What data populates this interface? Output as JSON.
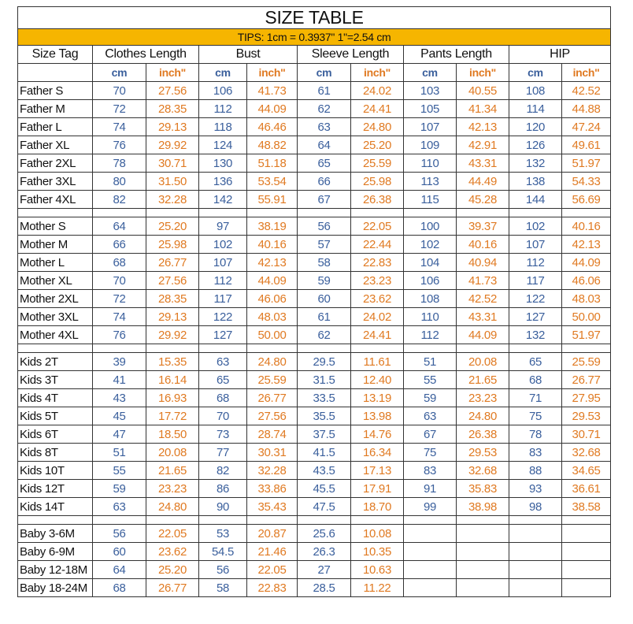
{
  "title": "SIZE TABLE",
  "tips": "TIPS: 1cm = 0.3937\"   1\"=2.54 cm",
  "headers": [
    "Size Tag",
    "Clothes Length",
    "Bust",
    "Sleeve Length",
    "Pants Length",
    "HIP"
  ],
  "unit_cm": "cm",
  "unit_inch": "inch\"",
  "colors": {
    "cm": "#3a5f9c",
    "inch": "#e07a22",
    "tips_bg": "#f6b500"
  },
  "groups": [
    {
      "rows": [
        {
          "tag": "Father S",
          "v": [
            "70",
            "27.56",
            "106",
            "41.73",
            "61",
            "24.02",
            "103",
            "40.55",
            "108",
            "42.52"
          ]
        },
        {
          "tag": "Father M",
          "v": [
            "72",
            "28.35",
            "112",
            "44.09",
            "62",
            "24.41",
            "105",
            "41.34",
            "114",
            "44.88"
          ]
        },
        {
          "tag": "Father L",
          "v": [
            "74",
            "29.13",
            "118",
            "46.46",
            "63",
            "24.80",
            "107",
            "42.13",
            "120",
            "47.24"
          ]
        },
        {
          "tag": "Father XL",
          "v": [
            "76",
            "29.92",
            "124",
            "48.82",
            "64",
            "25.20",
            "109",
            "42.91",
            "126",
            "49.61"
          ]
        },
        {
          "tag": "Father 2XL",
          "v": [
            "78",
            "30.71",
            "130",
            "51.18",
            "65",
            "25.59",
            "110",
            "43.31",
            "132",
            "51.97"
          ]
        },
        {
          "tag": "Father 3XL",
          "v": [
            "80",
            "31.50",
            "136",
            "53.54",
            "66",
            "25.98",
            "113",
            "44.49",
            "138",
            "54.33"
          ]
        },
        {
          "tag": "Father 4XL",
          "v": [
            "82",
            "32.28",
            "142",
            "55.91",
            "67",
            "26.38",
            "115",
            "45.28",
            "144",
            "56.69"
          ]
        }
      ]
    },
    {
      "rows": [
        {
          "tag": "Mother S",
          "v": [
            "64",
            "25.20",
            "97",
            "38.19",
            "56",
            "22.05",
            "100",
            "39.37",
            "102",
            "40.16"
          ]
        },
        {
          "tag": "Mother M",
          "v": [
            "66",
            "25.98",
            "102",
            "40.16",
            "57",
            "22.44",
            "102",
            "40.16",
            "107",
            "42.13"
          ]
        },
        {
          "tag": "Mother L",
          "v": [
            "68",
            "26.77",
            "107",
            "42.13",
            "58",
            "22.83",
            "104",
            "40.94",
            "112",
            "44.09"
          ]
        },
        {
          "tag": "Mother XL",
          "v": [
            "70",
            "27.56",
            "112",
            "44.09",
            "59",
            "23.23",
            "106",
            "41.73",
            "117",
            "46.06"
          ]
        },
        {
          "tag": "Mother 2XL",
          "v": [
            "72",
            "28.35",
            "117",
            "46.06",
            "60",
            "23.62",
            "108",
            "42.52",
            "122",
            "48.03"
          ]
        },
        {
          "tag": "Mother 3XL",
          "v": [
            "74",
            "29.13",
            "122",
            "48.03",
            "61",
            "24.02",
            "110",
            "43.31",
            "127",
            "50.00"
          ]
        },
        {
          "tag": "Mother 4XL",
          "v": [
            "76",
            "29.92",
            "127",
            "50.00",
            "62",
            "24.41",
            "112",
            "44.09",
            "132",
            "51.97"
          ]
        }
      ]
    },
    {
      "rows": [
        {
          "tag": "Kids 2T",
          "v": [
            "39",
            "15.35",
            "63",
            "24.80",
            "29.5",
            "11.61",
            "51",
            "20.08",
            "65",
            "25.59"
          ]
        },
        {
          "tag": "Kids 3T",
          "v": [
            "41",
            "16.14",
            "65",
            "25.59",
            "31.5",
            "12.40",
            "55",
            "21.65",
            "68",
            "26.77"
          ]
        },
        {
          "tag": "Kids 4T",
          "v": [
            "43",
            "16.93",
            "68",
            "26.77",
            "33.5",
            "13.19",
            "59",
            "23.23",
            "71",
            "27.95"
          ]
        },
        {
          "tag": "Kids 5T",
          "v": [
            "45",
            "17.72",
            "70",
            "27.56",
            "35.5",
            "13.98",
            "63",
            "24.80",
            "75",
            "29.53"
          ]
        },
        {
          "tag": "Kids 6T",
          "v": [
            "47",
            "18.50",
            "73",
            "28.74",
            "37.5",
            "14.76",
            "67",
            "26.38",
            "78",
            "30.71"
          ]
        },
        {
          "tag": "Kids 8T",
          "v": [
            "51",
            "20.08",
            "77",
            "30.31",
            "41.5",
            "16.34",
            "75",
            "29.53",
            "83",
            "32.68"
          ]
        },
        {
          "tag": "Kids 10T",
          "v": [
            "55",
            "21.65",
            "82",
            "32.28",
            "43.5",
            "17.13",
            "83",
            "32.68",
            "88",
            "34.65"
          ]
        },
        {
          "tag": "Kids 12T",
          "v": [
            "59",
            "23.23",
            "86",
            "33.86",
            "45.5",
            "17.91",
            "91",
            "35.83",
            "93",
            "36.61"
          ]
        },
        {
          "tag": "Kids 14T",
          "v": [
            "63",
            "24.80",
            "90",
            "35.43",
            "47.5",
            "18.70",
            "99",
            "38.98",
            "98",
            "38.58"
          ]
        }
      ]
    },
    {
      "rows": [
        {
          "tag": "Baby 3-6M",
          "v": [
            "56",
            "22.05",
            "53",
            "20.87",
            "25.6",
            "10.08",
            "",
            "",
            "",
            ""
          ]
        },
        {
          "tag": "Baby 6-9M",
          "v": [
            "60",
            "23.62",
            "54.5",
            "21.46",
            "26.3",
            "10.35",
            "",
            "",
            "",
            ""
          ]
        },
        {
          "tag": "Baby 12-18M",
          "v": [
            "64",
            "25.20",
            "56",
            "22.05",
            "27",
            "10.63",
            "",
            "",
            "",
            ""
          ]
        },
        {
          "tag": "Baby 18-24M",
          "v": [
            "68",
            "26.77",
            "58",
            "22.83",
            "28.5",
            "11.22",
            "",
            "",
            "",
            ""
          ]
        }
      ]
    }
  ]
}
